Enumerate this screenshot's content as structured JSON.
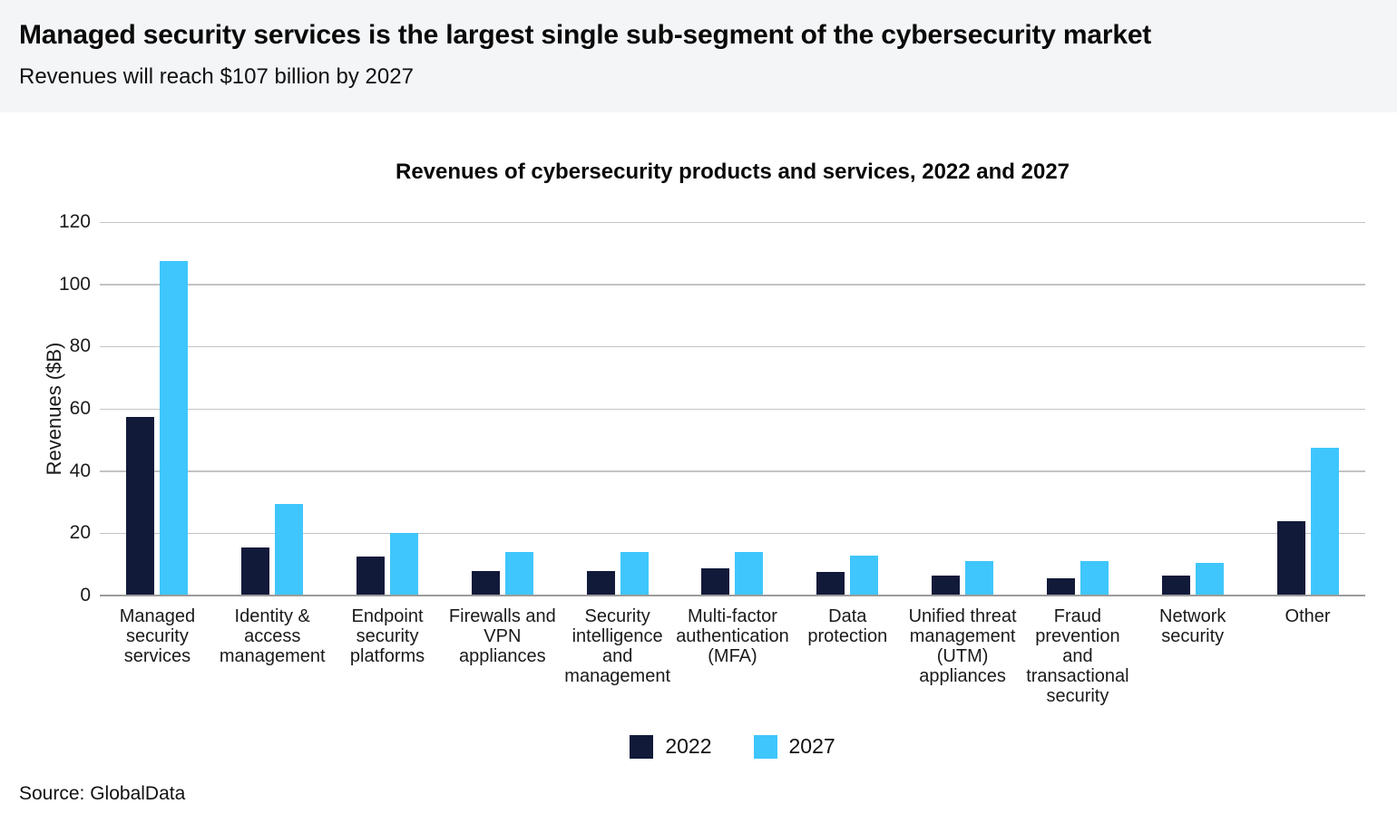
{
  "header": {
    "title": "Managed security services is the largest single sub-segment of the cybersecurity market",
    "subtitle": "Revenues will reach $107 billion by 2027"
  },
  "source": "Source: GlobalData",
  "colors": {
    "series_2022": "#121a3a",
    "series_2027": "#3fc6fc",
    "header_background": "#f4f5f7",
    "gridline": "#c3c3c3",
    "axis_line": "#9b9b9b"
  },
  "chart_data": {
    "type": "bar",
    "title": "Revenues of cybersecurity products and services, 2022 and 2027",
    "xlabel": "",
    "ylabel": "Revenues ($B)",
    "ylim": [
      0,
      120
    ],
    "yticks": [
      0,
      20,
      40,
      60,
      80,
      100,
      120
    ],
    "grid": true,
    "legend_position": "bottom",
    "categories": [
      "Managed security services",
      "Identity & access management",
      "Endpoint security platforms",
      "Firewalls and VPN appliances",
      "Security intelligence and management",
      "Multi-factor authentication (MFA)",
      "Data protection",
      "Unified threat management (UTM) appliances",
      "Fraud prevention and transactional security",
      "Network security",
      "Other"
    ],
    "series": [
      {
        "name": "2022",
        "color": "#121a3a",
        "values": [
          57.5,
          15.5,
          12.5,
          8,
          8,
          8.7,
          7.5,
          6.3,
          5.5,
          6.3,
          24
        ]
      },
      {
        "name": "2027",
        "color": "#3fc6fc",
        "values": [
          107.5,
          29.5,
          20,
          14,
          14,
          14,
          12.8,
          11,
          11,
          10.5,
          47.5
        ]
      }
    ]
  }
}
